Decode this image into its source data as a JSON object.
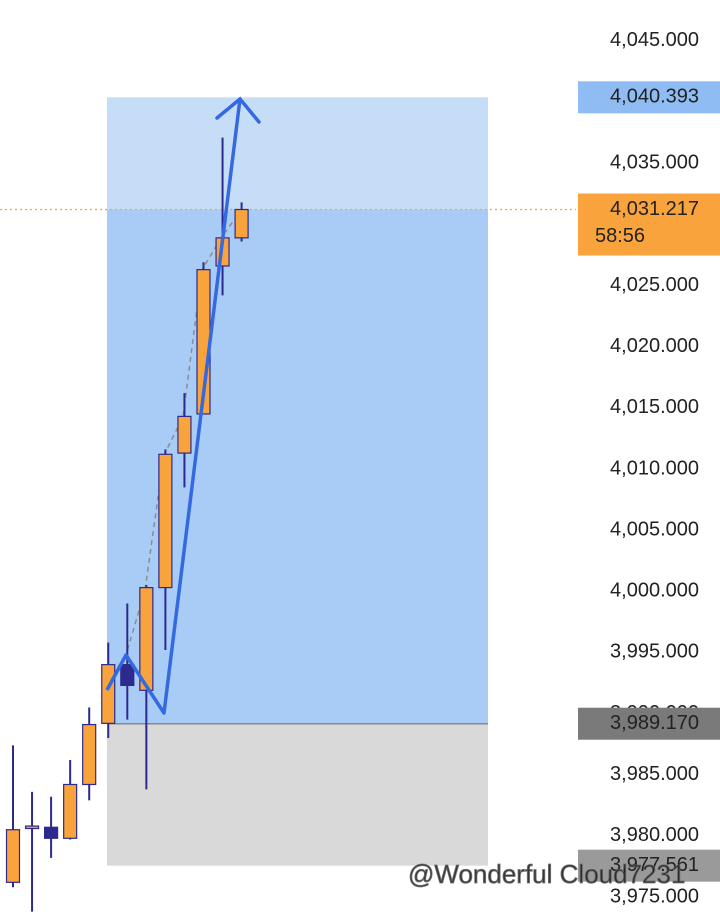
{
  "chart_data": {
    "type": "candlestick",
    "categories": [
      null,
      null,
      null,
      null,
      null,
      null,
      null,
      null,
      null,
      null,
      null,
      null,
      null
    ],
    "open": [
      3976.2,
      3980.6,
      3980.7,
      3979.8,
      3984.2,
      3989.2,
      3994.0,
      3991.9,
      4000.3,
      4011.3,
      4014.5,
      4026.6,
      4028.9
    ],
    "high": [
      3987.4,
      3983.6,
      3983.2,
      3986.2,
      3990.5,
      3995.8,
      3999.0,
      4000.5,
      4011.6,
      4016.2,
      4026.9,
      4037.1,
      4031.8
    ],
    "low": [
      3975.8,
      3973.8,
      3978.2,
      3979.7,
      3982.9,
      3988.0,
      3989.5,
      3983.8,
      3995.2,
      4008.5,
      4014.5,
      4024.2,
      4028.6
    ],
    "close": [
      3980.5,
      3980.8,
      3979.8,
      3984.2,
      3989.1,
      3994.0,
      3992.3,
      4000.3,
      4011.2,
      4014.3,
      4026.3,
      4028.9,
      4031.217
    ],
    "up_color": "#f9a33c",
    "down_color": "#2c2a8e",
    "ylim": [
      3973.2,
      4048.35
    ],
    "yticks": [
      {
        "value": 3975,
        "label": "3,975.000"
      },
      {
        "value": 3980,
        "label": "3,980.000"
      },
      {
        "value": 3985,
        "label": "3,985.000"
      },
      {
        "value": 3990,
        "label": "3,990.000"
      },
      {
        "value": 3995,
        "label": "3,995.000"
      },
      {
        "value": 4000,
        "label": "4,000.000"
      },
      {
        "value": 4005,
        "label": "4,005.000"
      },
      {
        "value": 4010,
        "label": "4,010.000"
      },
      {
        "value": 4015,
        "label": "4,015.000"
      },
      {
        "value": 4020,
        "label": "4,020.000"
      },
      {
        "value": 4025,
        "label": "4,025.000"
      },
      {
        "value": 4030,
        "label": "4,030.000"
      },
      {
        "value": 4035,
        "label": "4,035.000"
      },
      {
        "value": 4040,
        "label": "4,040.000"
      },
      {
        "value": 4045,
        "label": "4,045.000"
      }
    ],
    "target": {
      "value": 4040.393,
      "label": "4,040.393",
      "color": "#8fbdf3"
    },
    "current": {
      "value": 4031.217,
      "label": "4,031.217",
      "countdown": "58:56",
      "color": "#f9a33c"
    },
    "entry": {
      "value": 3989.17,
      "label": "3,989.170",
      "color": "#7a7a7a"
    },
    "stop": {
      "value": 3977.561,
      "label": "3,977.561",
      "color": "#9a9a9a"
    },
    "watermark": "@Wonderful Cloud7231"
  }
}
